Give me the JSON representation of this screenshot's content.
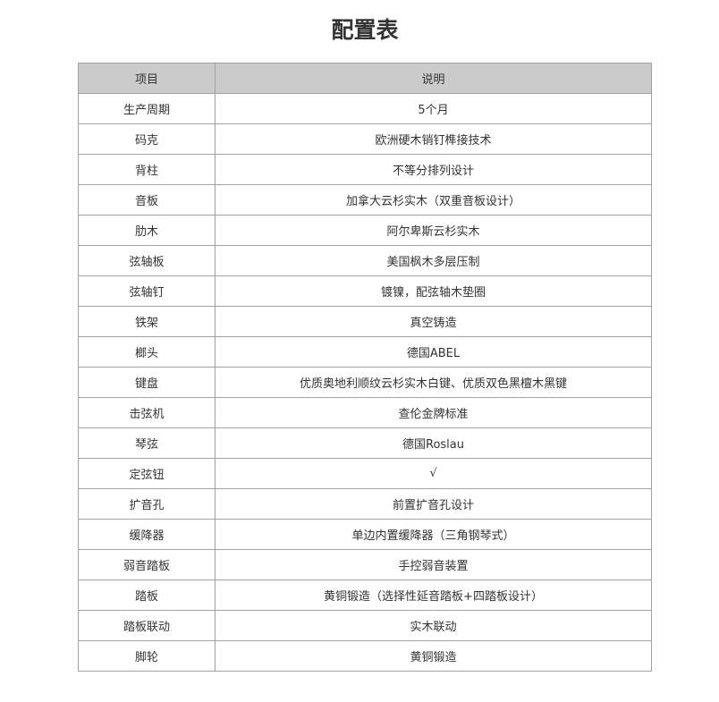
{
  "title": "配置表",
  "table": {
    "headers": [
      "项目",
      "说明"
    ],
    "rows": [
      [
        "生产周期",
        "5个月"
      ],
      [
        "码克",
        "欧洲硬木销钉榫接技术"
      ],
      [
        "背柱",
        "不等分排列设计"
      ],
      [
        "音板",
        "加拿大云杉实木（双重音板设计）"
      ],
      [
        "肋木",
        "阿尔卑斯云杉实木"
      ],
      [
        "弦轴板",
        "美国枫木多层压制"
      ],
      [
        "弦轴钉",
        "镀镍，配弦轴木垫圈"
      ],
      [
        "铁架",
        "真空铸造"
      ],
      [
        "榔头",
        "德国ABEL"
      ],
      [
        "键盘",
        "优质奥地利顺纹云杉实木白键、优质双色黑檀木黑键"
      ],
      [
        "击弦机",
        "查伦金牌标准"
      ],
      [
        "琴弦",
        "德国Roslau"
      ],
      [
        "定弦钮",
        "√"
      ],
      [
        "扩音孔",
        "前置扩音孔设计"
      ],
      [
        "缓降器",
        "单边内置缓降器（三角钢琴式）"
      ],
      [
        "弱音踏板",
        "手控弱音装置"
      ],
      [
        "踏板",
        "黄铜锻造（选择性延音踏板+四踏板设计）"
      ],
      [
        "踏板联动",
        "实木联动"
      ],
      [
        "脚轮",
        "黄铜锻造"
      ]
    ]
  }
}
